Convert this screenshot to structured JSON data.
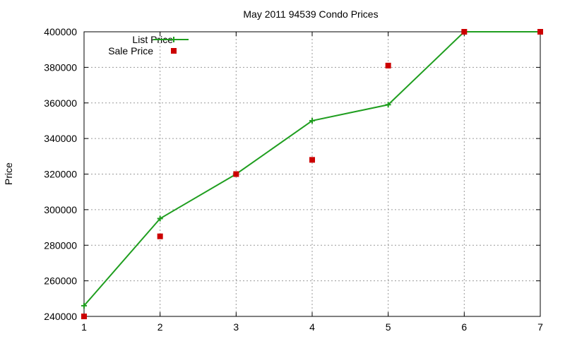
{
  "chart_data": {
    "type": "line",
    "title": "May 2011 94539 Condo Prices",
    "xlabel": "",
    "ylabel": "Price",
    "xlim": [
      1,
      7
    ],
    "ylim": [
      240000,
      400000
    ],
    "x_ticks": [
      "1",
      "2",
      "3",
      "4",
      "5",
      "6",
      "7"
    ],
    "y_ticks": [
      "240000",
      "260000",
      "280000",
      "300000",
      "320000",
      "340000",
      "360000",
      "380000",
      "400000"
    ],
    "grid": true,
    "legend_position": "top-left",
    "series": [
      {
        "name": "List Price",
        "kind": "line",
        "marker": "plus",
        "color": "#1f9e1f",
        "x": [
          1,
          2,
          3,
          4,
          5,
          6,
          7
        ],
        "y": [
          246000,
          295000,
          320000,
          350000,
          359000,
          400000,
          400000
        ]
      },
      {
        "name": "Sale Price",
        "kind": "scatter",
        "marker": "square",
        "color": "#cc0000",
        "x": [
          1,
          2,
          3,
          4,
          5,
          6,
          7
        ],
        "y": [
          240000,
          285000,
          320000,
          328000,
          381000,
          400000,
          400000
        ]
      }
    ]
  }
}
